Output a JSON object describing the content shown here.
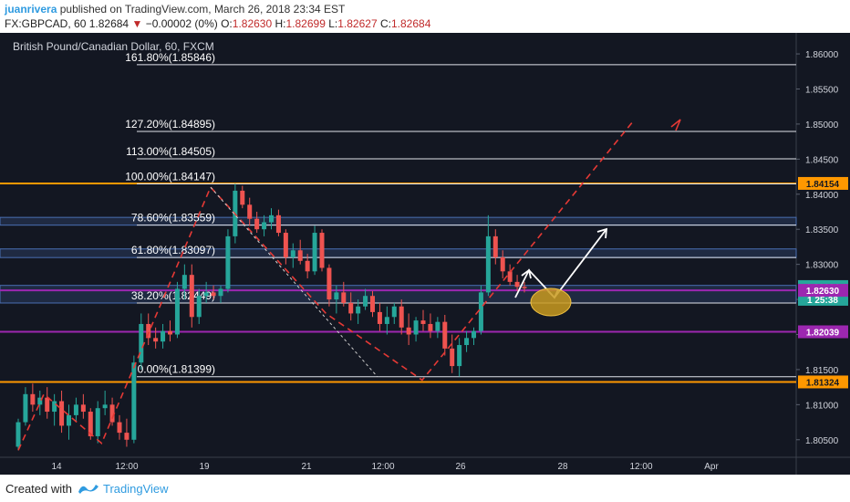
{
  "header": {
    "author": "juanrivera",
    "published": "published on TradingView.com, March 26, 2018 23:34 EST",
    "symbol": "FX:GBPCAD, 60",
    "last": "1.82684",
    "change_arrow": "▼",
    "change": "−0.00002 (0%)",
    "o_label": "O:",
    "o": "1.82630",
    "h_label": "H:",
    "h": "1.82699",
    "l_label": "L:",
    "l": "1.82627",
    "c_label": "C:",
    "c": "1.82684"
  },
  "footer": {
    "created_with": "Created with",
    "brand": "TradingView"
  },
  "colors": {
    "background": "#131722",
    "up": "#26a69a",
    "down": "#ef5350",
    "fib_line": "#e0e3eb",
    "fib_100_0": "#ff9800",
    "purple": "#9c27b0",
    "zone_fill": "#2a3a5c",
    "dashed_projection": "#e53935",
    "arrow_white": "#ffffff",
    "ellipse": "#c99a1e"
  },
  "chart_data": {
    "type": "candlestick",
    "title": "British Pound/Canadian Dollar, 60, FXCM",
    "y_ticks": [
      "1.86000",
      "1.85500",
      "1.85000",
      "1.84500",
      "1.84000",
      "1.83500",
      "1.83000",
      "1.82500",
      "1.82000",
      "1.81500",
      "1.81000",
      "1.80500"
    ],
    "x_ticks": [
      "14",
      "12:00",
      "19",
      "21",
      "12:00",
      "26",
      "28",
      "12:00",
      "Apr"
    ],
    "ylim": [
      1.8025,
      1.863
    ],
    "price_badges": [
      {
        "value": "1.84154",
        "color": "#ff9800",
        "text_color": "#131722"
      },
      {
        "value": "1.82684",
        "color": "#26a69a",
        "text_color": "#ffffff"
      },
      {
        "value": "25:38",
        "color": "#26a69a",
        "text_color": "#ffffff",
        "prefix": "1"
      },
      {
        "value": "1.82630",
        "color": "#9c27b0",
        "text_color": "#ffffff"
      },
      {
        "value": "1.82039",
        "color": "#9c27b0",
        "text_color": "#ffffff"
      },
      {
        "value": "1.81324",
        "color": "#ff9800",
        "text_color": "#131722"
      }
    ],
    "fibonacci": [
      {
        "label": "161.80%(1.85846)",
        "value": 1.85846
      },
      {
        "label": "127.20%(1.84895)",
        "value": 1.84895
      },
      {
        "label": "113.00%(1.84505)",
        "value": 1.84505
      },
      {
        "label": "100.00%(1.84147)",
        "value": 1.84147
      },
      {
        "label": "78.60%(1.83559)",
        "value": 1.83559
      },
      {
        "label": "61.80%(1.83097)",
        "value": 1.83097
      },
      {
        "label": "38.20%(1.82449)",
        "value": 1.82449
      },
      {
        "label": "0.00%(1.81399)",
        "value": 1.81399
      }
    ],
    "horizontal_lines": [
      {
        "value": 1.84154,
        "color": "#ff9800"
      },
      {
        "value": 1.81324,
        "color": "#ff9800"
      },
      {
        "value": 1.8263,
        "color": "#9c27b0"
      },
      {
        "value": 1.82039,
        "color": "#9c27b0"
      }
    ],
    "zones": [
      {
        "from": 1.83559,
        "to": 1.8367
      },
      {
        "from": 1.83097,
        "to": 1.8322
      },
      {
        "from": 1.82449,
        "to": 1.827
      }
    ],
    "candles": [
      [
        1.804,
        1.808,
        1.8035,
        1.8075
      ],
      [
        1.8075,
        1.8125,
        1.807,
        1.8115
      ],
      [
        1.8115,
        1.813,
        1.809,
        1.81
      ],
      [
        1.81,
        1.812,
        1.8085,
        1.811
      ],
      [
        1.811,
        1.8125,
        1.808,
        1.809
      ],
      [
        1.809,
        1.8115,
        1.807,
        1.8105
      ],
      [
        1.8105,
        1.812,
        1.806,
        1.807
      ],
      [
        1.807,
        1.81,
        1.805,
        1.8085
      ],
      [
        1.8085,
        1.811,
        1.8075,
        1.81
      ],
      [
        1.81,
        1.8115,
        1.808,
        1.809
      ],
      [
        1.809,
        1.8095,
        1.805,
        1.8055
      ],
      [
        1.8055,
        1.8105,
        1.8045,
        1.8095
      ],
      [
        1.8095,
        1.812,
        1.8085,
        1.81
      ],
      [
        1.81,
        1.811,
        1.807,
        1.8075
      ],
      [
        1.8075,
        1.8085,
        1.805,
        1.806
      ],
      [
        1.806,
        1.808,
        1.804,
        1.805
      ],
      [
        1.805,
        1.817,
        1.8045,
        1.816
      ],
      [
        1.816,
        1.823,
        1.815,
        1.8215
      ],
      [
        1.8215,
        1.823,
        1.8185,
        1.8195
      ],
      [
        1.8195,
        1.821,
        1.818,
        1.819
      ],
      [
        1.819,
        1.8215,
        1.818,
        1.8205
      ],
      [
        1.8205,
        1.822,
        1.819,
        1.82
      ],
      [
        1.82,
        1.8275,
        1.8195,
        1.8265
      ],
      [
        1.8265,
        1.83,
        1.825,
        1.8285
      ],
      [
        1.8285,
        1.83,
        1.821,
        1.8225
      ],
      [
        1.8225,
        1.8265,
        1.8215,
        1.8255
      ],
      [
        1.8255,
        1.8275,
        1.8245,
        1.826
      ],
      [
        1.826,
        1.827,
        1.825,
        1.8255
      ],
      [
        1.8255,
        1.827,
        1.8245,
        1.8265
      ],
      [
        1.8265,
        1.835,
        1.826,
        1.834
      ],
      [
        1.834,
        1.8415,
        1.833,
        1.8405
      ],
      [
        1.8405,
        1.8412,
        1.838,
        1.8385
      ],
      [
        1.8385,
        1.8395,
        1.8355,
        1.8365
      ],
      [
        1.8365,
        1.8375,
        1.8345,
        1.835
      ],
      [
        1.835,
        1.837,
        1.834,
        1.836
      ],
      [
        1.836,
        1.838,
        1.835,
        1.837
      ],
      [
        1.837,
        1.8378,
        1.834,
        1.8345
      ],
      [
        1.8345,
        1.835,
        1.83,
        1.831
      ],
      [
        1.831,
        1.833,
        1.8295,
        1.832
      ],
      [
        1.832,
        1.8335,
        1.83,
        1.8305
      ],
      [
        1.8305,
        1.8315,
        1.828,
        1.829
      ],
      [
        1.829,
        1.8355,
        1.8285,
        1.8345
      ],
      [
        1.8345,
        1.835,
        1.829,
        1.8295
      ],
      [
        1.8295,
        1.83,
        1.824,
        1.825
      ],
      [
        1.825,
        1.827,
        1.823,
        1.826
      ],
      [
        1.826,
        1.8275,
        1.824,
        1.8245
      ],
      [
        1.8245,
        1.826,
        1.822,
        1.823
      ],
      [
        1.823,
        1.825,
        1.8215,
        1.824
      ],
      [
        1.824,
        1.8265,
        1.8235,
        1.8255
      ],
      [
        1.8255,
        1.8262,
        1.8225,
        1.8232
      ],
      [
        1.8232,
        1.8245,
        1.8205,
        1.8215
      ],
      [
        1.8215,
        1.824,
        1.82,
        1.8225
      ],
      [
        1.8225,
        1.8245,
        1.8215,
        1.824
      ],
      [
        1.824,
        1.825,
        1.82,
        1.821
      ],
      [
        1.821,
        1.823,
        1.8185,
        1.82
      ],
      [
        1.82,
        1.8225,
        1.819,
        1.822
      ],
      [
        1.822,
        1.8235,
        1.8205,
        1.8215
      ],
      [
        1.8215,
        1.823,
        1.8195,
        1.8205
      ],
      [
        1.8205,
        1.8225,
        1.8195,
        1.8218
      ],
      [
        1.8218,
        1.8228,
        1.817,
        1.818
      ],
      [
        1.818,
        1.82,
        1.8145,
        1.8155
      ],
      [
        1.8155,
        1.8195,
        1.814,
        1.8185
      ],
      [
        1.8185,
        1.8205,
        1.8175,
        1.8195
      ],
      [
        1.8195,
        1.821,
        1.8185,
        1.8205
      ],
      [
        1.8205,
        1.827,
        1.82,
        1.826
      ],
      [
        1.826,
        1.837,
        1.8255,
        1.834
      ],
      [
        1.834,
        1.835,
        1.83,
        1.831
      ],
      [
        1.831,
        1.832,
        1.828,
        1.829
      ],
      [
        1.829,
        1.83,
        1.827,
        1.8275
      ],
      [
        1.8275,
        1.8285,
        1.8262,
        1.8268
      ],
      [
        1.8268,
        1.8275,
        1.826,
        1.8266
      ]
    ],
    "projections": [
      {
        "kind": "red-dashed-zigzag",
        "points": [
          [
            0.0,
            1.8035
          ],
          [
            0.04,
            1.8115
          ],
          [
            0.13,
            1.8045
          ],
          [
            0.3,
            1.841
          ],
          [
            0.48,
            1.823
          ],
          [
            0.63,
            1.8135
          ],
          [
            0.96,
            1.8505
          ]
        ]
      },
      {
        "kind": "white-dashed",
        "points": [
          [
            0.3,
            1.841
          ],
          [
            0.56,
            1.814
          ]
        ]
      }
    ]
  }
}
